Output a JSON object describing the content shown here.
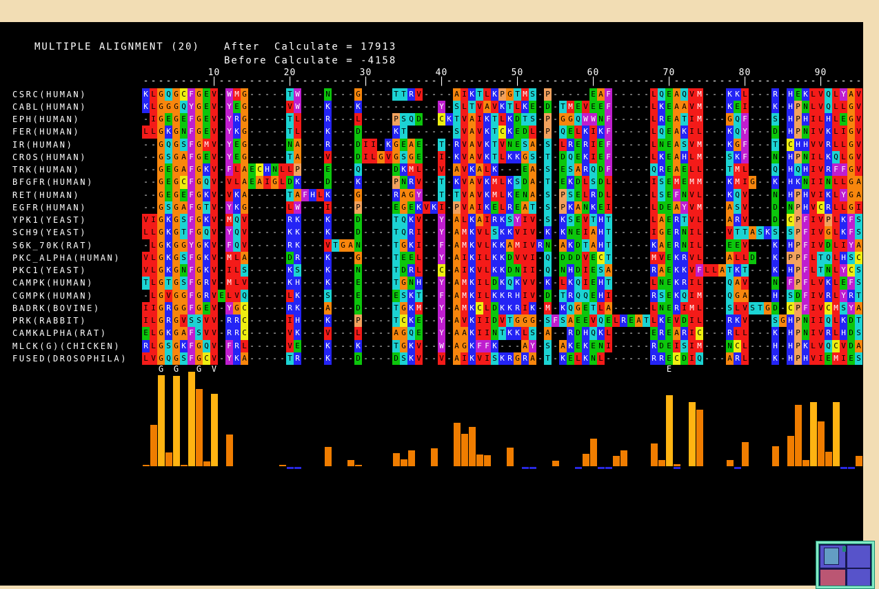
{
  "header": {
    "title": "MULTIPLE ALIGNMENT (20)",
    "after_line": "After  Calculate = 17913",
    "before_line": "Before Calculate = -4158",
    "after_value": "17913",
    "before_value": "-4158"
  },
  "ruler": {
    "num_columns": 95,
    "tick_interval": 10,
    "tick_labels": [
      "10",
      "20",
      "30",
      "40",
      "50",
      "60",
      "70",
      "80",
      "90"
    ]
  },
  "alignment": {
    "rows": [
      {
        "label": "CSRC(HUMAN)",
        "sequence": "KLGQGCFGEV-WMG-----TW---N---G----TTRV----AIKTLKPGTMS-P-----EAF-----LQEAQVM---KKL---R-HEKLVQLYAV"
      },
      {
        "label": "CABL(HUMAN)",
        "sequence": "KLGGGQYGEV-YEG-----VW---K---K----------Y-SLTVAVKTLKE-D-TMEVEEF-----LKEAAVM---KEI---K-HPNLVQLLGV"
      },
      {
        "label": "EPH(HUMAN)",
        "sequence": "-IGEGEFGEV-YRG-----TL---R---L----PSQD--CKTVAIKTLKDTS-P-GGQWWNF-----LREATIM---GQF---S-HPHILHLEGV"
      },
      {
        "label": "FER(HUMAN)",
        "sequence": "LLGKGNFGEV-YKG-----TL---K---D----KT------SVAVKTCKEDL-P-QELKIKF-----LQEAKIL---KQY---D-HPNIVKLIGV"
      },
      {
        "label": "IR(HUMAN)",
        "sequence": "--GQGSFGMV-YEG-----NA---R---DII-KGEAE--T-RVAVKTVNESA-S-LRERIEF-----LNEASVM---KGF---T-CHHVVRLLGV"
      },
      {
        "label": "CROS(HUMAN)",
        "sequence": "--GSGAFGEV-YEG-----TA---V---DILGVGSGE--I-KVAVKTLKKGS-T-DQEKIEF-----LKEAHLM---SKF---N-HPNILKQLGV"
      },
      {
        "label": "TRK(HUMAN)",
        "sequence": "--GEGAFGKV-FLAECHNLLP---E---Q----DKML--V-AVKALK---EA-S-ESARQDF-----QREAELL---TML---Q-HQHIVRFFGV"
      },
      {
        "label": "BFGFR(HUMAN)",
        "sequence": "--GEGCFGQV-VLAEAIGLDK---D---K----PNRV--T-KVAVKMLKSDA-T-EKDLSDL-----ISEMEMM---KMIG--K-HKNIINLLGA"
      },
      {
        "label": "RET(HUMAN)",
        "sequence": "--GEGEFGKV-VKA-----TAFHLK---G----RAGY--T-TVAVKMLKENA-S-PSELRDL-----LSEFNVL---KQV---N-HPHVIKLYGA"
      },
      {
        "label": "EGFR(HUMAN)",
        "sequence": "--GSGAFGTV-YKG-----LW---I---P----EGEKVKI-PVAIKELREAT-S-PKANKEI-----LDEAYVM---ASV---D-NPHVCRLLGI"
      },
      {
        "label": "YPK1(YEAST)",
        "sequence": "VIGKGSFGKV-MQV-----RK---K---D----TQKV--Y-ALKAIRKSYIV-S-KSEVTHT-----LAERTVL---ARV---D-CPFIVPLKFS"
      },
      {
        "label": "SCH9(YEAST)",
        "sequence": "LLGKGTFGQV-YQV-----KK---K---D----TQRI--Y-AMKVLSKKVIV-K-KNEIAHT-----IGERNIL---VTTASKS-SPFIVGLKFS"
      },
      {
        "label": "S6K_70K(RAT)",
        "sequence": "-LGKGGYGKV-FQV-----RK---VTGAN----TGKI--F-AMKVLKKAMIVRN-AKDTAHT-----KAERNIL---EEV---K-HPFIVDLIYA"
      },
      {
        "label": "PKC_ALPHA(HUMAN)",
        "sequence": "VLGKGSFGKV-MLA-----DR---K---G----TEEL--Y-AIKILKKDVVI-Q-DDDVECT-----MVEKRVL---ALLD--K-PPFLTQLHSC"
      },
      {
        "label": "PKC1(YEAST)",
        "sequence": "VLGKGNFGKV-ILS-----KS---K---N----TDRL--C-AIKVLKKDNII-Q-NHDIESA-----RAEKKVFLLATKT---K-HPFLTNLYCS"
      },
      {
        "label": "CAMPK(HUMAN)",
        "sequence": "TLGTGSFGRV-MLV-----KH---K---E----TGNH--Y-AMKILDKQKVV-K-LKQIEHT-----LNEKRIL---QAV---N-FPFLVKLEFS"
      },
      {
        "label": "CGMPK(HUMAN)",
        "sequence": "-LGVGGFGRVELVQ-----LK---S---E----ESKT--F-AMKILKKRHIV-D-TRQQEHI-----RSEKQIM---QGA---H-SDFIVRLYRT"
      },
      {
        "label": "BADRK(BOVINE)",
        "sequence": "IIGRGGFGEV-YGC-----RK---A---D----TGKM--Y-AMKCLDKKRIK-M-KQGETLA-----LNERIML---SLVSTGD-CPFIVCMSYA"
      },
      {
        "label": "PRK(RABBIT)",
        "sequence": "ILGRGVSSVV-RRC-----IH---K---P----TCKE--Y-AVKIIDVTGGG-SFSAEEVQELREATLKEVDIL---RKV---SGHPNIIQLKDT"
      },
      {
        "label": "CAMKALPHA(RAT)",
        "sequence": "ELGKGAFSVV-RRC-----VK---V---L----AGQE--Y-AAKIINTKKLS-A--RDHQKL-----EREARIC---RLL---K-HPNIVRLHDS"
      },
      {
        "label": "MLCK(G)(CHICKEN)",
        "sequence": "RLGSGKFGQV-FRL-----VE---K---K----TGKV--W-AGKFFK---AY-S-AKEKENI-----RDEISIM---NCL---H-HPKLVQCVDA"
      },
      {
        "label": "FUSED(DROSOPHILA)",
        "sequence": "LVGQGSFGCV-YKA-----TR---K---D----DSKV--V-AIKVISKRGRA-T-KELKNL------RRECDIQ---ARL---K-HPHVIEMIES"
      }
    ],
    "residue_colors": {
      "GA": {
        "bg": "#f8860d",
        "fg": "#000000"
      },
      "LIV": {
        "bg": "#f41b19",
        "fg": "#000000"
      },
      "M": {
        "bg": "#f41b19",
        "fg": "#ffffff"
      },
      "KRH": {
        "bg": "#2424f5",
        "fg": "#ffffff"
      },
      "DEN": {
        "bg": "#0cc60c",
        "fg": "#000000"
      },
      "STQ": {
        "bg": "#1cd3d3",
        "fg": "#000000"
      },
      "FYW": {
        "bg": "#bf1ecf",
        "fg": "#ffffff"
      },
      "C": {
        "bg": "#eeee11",
        "fg": "#000000"
      },
      "P": {
        "bg": "#f2a25e",
        "fg": "#000000"
      },
      "-": {
        "bg": "#000000",
        "fg": "#ffffff"
      }
    }
  },
  "conservation": {
    "consensus_labels": [
      {
        "col": 3,
        "letter": "G"
      },
      {
        "col": 5,
        "letter": "G"
      },
      {
        "col": 8,
        "letter": "G"
      },
      {
        "col": 10,
        "letter": "V"
      },
      {
        "col": 70,
        "letter": "E"
      }
    ],
    "bars": [
      [
        1,
        2,
        "o"
      ],
      [
        2,
        60,
        "o"
      ],
      [
        3,
        132,
        "y"
      ],
      [
        4,
        20,
        "o"
      ],
      [
        5,
        131,
        "y"
      ],
      [
        6,
        2,
        "o"
      ],
      [
        7,
        137,
        "y"
      ],
      [
        8,
        112,
        "o"
      ],
      [
        9,
        7,
        "o"
      ],
      [
        10,
        105,
        "y"
      ],
      [
        12,
        46,
        "o"
      ],
      [
        19,
        2,
        "o"
      ],
      [
        25,
        28,
        "o"
      ],
      [
        28,
        9,
        "o"
      ],
      [
        29,
        2,
        "o"
      ],
      [
        34,
        19,
        "o"
      ],
      [
        35,
        10,
        "o"
      ],
      [
        36,
        23,
        "o"
      ],
      [
        39,
        26,
        "o"
      ],
      [
        42,
        63,
        "o"
      ],
      [
        43,
        47,
        "o"
      ],
      [
        44,
        57,
        "o"
      ],
      [
        45,
        17,
        "o"
      ],
      [
        46,
        16,
        "o"
      ],
      [
        49,
        27,
        "o"
      ],
      [
        55,
        8,
        "o"
      ],
      [
        59,
        18,
        "o"
      ],
      [
        60,
        40,
        "o"
      ],
      [
        63,
        15,
        "o"
      ],
      [
        64,
        23,
        "o"
      ],
      [
        68,
        33,
        "o"
      ],
      [
        69,
        9,
        "o"
      ],
      [
        70,
        103,
        "y"
      ],
      [
        71,
        3,
        "o"
      ],
      [
        73,
        93,
        "y"
      ],
      [
        74,
        82,
        "o"
      ],
      [
        78,
        9,
        "o"
      ],
      [
        80,
        35,
        "o"
      ],
      [
        84,
        29,
        "o"
      ],
      [
        86,
        44,
        "o"
      ],
      [
        87,
        89,
        "o"
      ],
      [
        88,
        9,
        "o"
      ],
      [
        89,
        93,
        "y"
      ],
      [
        90,
        65,
        "o"
      ],
      [
        91,
        21,
        "o"
      ],
      [
        92,
        93,
        "y"
      ],
      [
        95,
        15,
        "o"
      ]
    ],
    "negative_marks": [
      20,
      21,
      51,
      52,
      58,
      61,
      62,
      71,
      79,
      93,
      94
    ],
    "bar_colors": {
      "o": "#f07d00",
      "y": "#ffb412",
      "neg": "#2828e0"
    }
  },
  "overview_icon": {
    "frame": "#82e9c5",
    "frame_dark": "#1f8a70",
    "base": "#171750",
    "panel": "#5753ca",
    "inner_square": "#639dc4",
    "rose_panel": "#bb5673"
  }
}
